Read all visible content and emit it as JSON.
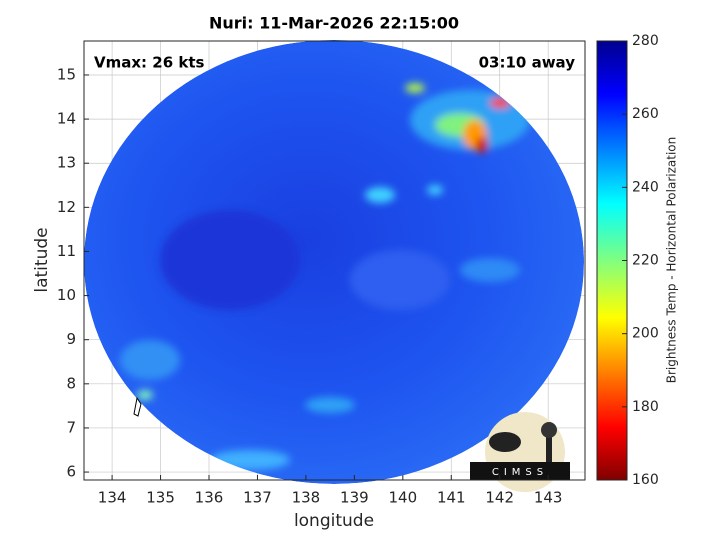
{
  "chart_data": {
    "type": "map",
    "title": "Nuri: 11-Mar-2026 22:15:00",
    "annotations": [
      "Vmax: 26 kts",
      "03:10 away"
    ],
    "xlabel": "longitude",
    "ylabel": "latitude",
    "xlim": [
      133.42,
      143.76
    ],
    "xticks": [
      134,
      135,
      136,
      137,
      138,
      139,
      140,
      141,
      142,
      143
    ],
    "ylim": [
      5.82,
      15.77
    ],
    "yticks": [
      6,
      7,
      8,
      9,
      10,
      11,
      12,
      13,
      14,
      15
    ],
    "grid": true,
    "colorbar": {
      "label": "Brightness Temp - Horizontal Polarization",
      "lim": [
        160,
        280
      ],
      "ticks": [
        160,
        180,
        200,
        220,
        240,
        260,
        280
      ],
      "colormap": "jet"
    },
    "logo": "CIMSS"
  }
}
